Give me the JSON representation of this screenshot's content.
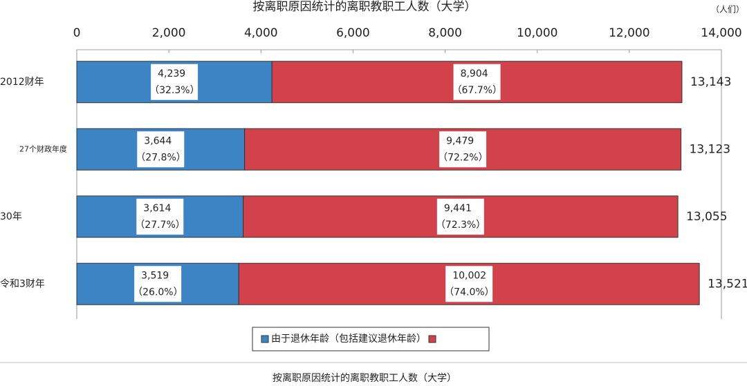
{
  "chart_data": {
    "type": "stacked-barh",
    "title": "按离职原因统计的离职教职工人数（大学）",
    "unit": "（人们）",
    "caption": "按离职原因统计的离职教职工人数（大学）",
    "categories": [
      "2012财年",
      "27个财政年度",
      "30年",
      "令和3财年"
    ],
    "series": [
      {
        "name": "由于退休年龄（包括建议退休年龄）",
        "color": "#3c84c4",
        "values": [
          4239,
          3644,
          3614,
          3519
        ],
        "value_labels": [
          "4,239",
          "3,644",
          "3,614",
          "3,519"
        ],
        "share_labels": [
          "（32.3%）",
          "（27.8%）",
          "（27.7%）",
          "（26.0%）"
        ]
      },
      {
        "color": "#d2424a",
        "values": [
          8904,
          9479,
          9441,
          10002
        ],
        "value_labels": [
          "8,904",
          "9,479",
          "9,441",
          "10,002"
        ],
        "share_labels": [
          "（67.7%）",
          "（72.2%）",
          "（72.3%）",
          "（74.0%）"
        ]
      }
    ],
    "totals": [
      13143,
      13123,
      13055,
      13521
    ],
    "total_labels": [
      "13,143",
      "13,123",
      "13,055",
      "13,521"
    ],
    "xlim": [
      0,
      14000
    ],
    "xticks": [
      0,
      {
        "value": 2000,
        "label": "2,000"
      },
      {
        "value": 4000,
        "label": "4,000"
      },
      {
        "value": 6000,
        "label": "6,000"
      },
      {
        "value": 8000,
        "label": "8,000"
      },
      {
        "value": 10000,
        "label": "10,000"
      },
      {
        "value": 12000,
        "label": "12,000"
      },
      {
        "value": 14000,
        "label": "14,000"
      }
    ],
    "grid": false
  }
}
